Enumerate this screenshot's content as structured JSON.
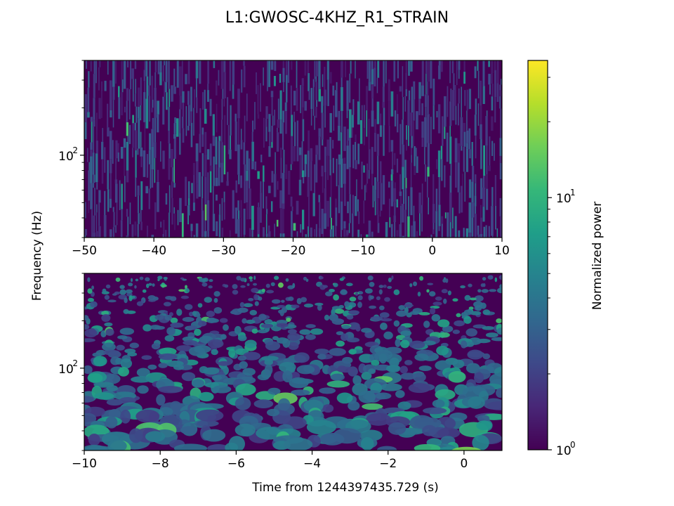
{
  "figure": {
    "title": "L1:GWOSC-4KHZ_R1_STRAIN",
    "ylabel": "Frequency (Hz)",
    "xlabel": "Time from 1244397435.729 (s)"
  },
  "colormap": {
    "name": "viridis",
    "stops": [
      "#440154",
      "#482777",
      "#3e4989",
      "#31688e",
      "#26828e",
      "#1f9e89",
      "#35b779",
      "#6ece58",
      "#b5de2b",
      "#fde725"
    ]
  },
  "colorbar": {
    "label": "Normalized power",
    "scale": "log",
    "range": [
      1,
      35
    ],
    "tick_labels": [
      {
        "base": "10",
        "exp": "0",
        "value": 1
      },
      {
        "base": "10",
        "exp": "1",
        "value": 10
      }
    ]
  },
  "chart_data": [
    {
      "type": "heatmap",
      "name": "spectrogram-top",
      "x_range": [
        -50,
        10
      ],
      "y_scale": "log",
      "y_range": [
        30,
        400
      ],
      "x_ticks": [
        "−50",
        "−40",
        "−30",
        "−20",
        "−10",
        "0",
        "10"
      ],
      "x_tick_values": [
        -50,
        -40,
        -30,
        -20,
        -10,
        0,
        10
      ],
      "y_tick_labels": [
        {
          "base": "10",
          "exp": "2",
          "value": 100
        }
      ],
      "pattern": "vertical-streaks"
    },
    {
      "type": "heatmap",
      "name": "spectrogram-bottom",
      "x_range": [
        -10,
        1
      ],
      "y_scale": "log",
      "y_range": [
        30,
        400
      ],
      "x_ticks": [
        "−10",
        "−8",
        "−6",
        "−4",
        "−2",
        "0"
      ],
      "x_tick_values": [
        -10,
        -8,
        -6,
        -4,
        -2,
        0
      ],
      "y_tick_labels": [
        {
          "base": "10",
          "exp": "2",
          "value": 100
        }
      ],
      "pattern": "blobs"
    }
  ]
}
